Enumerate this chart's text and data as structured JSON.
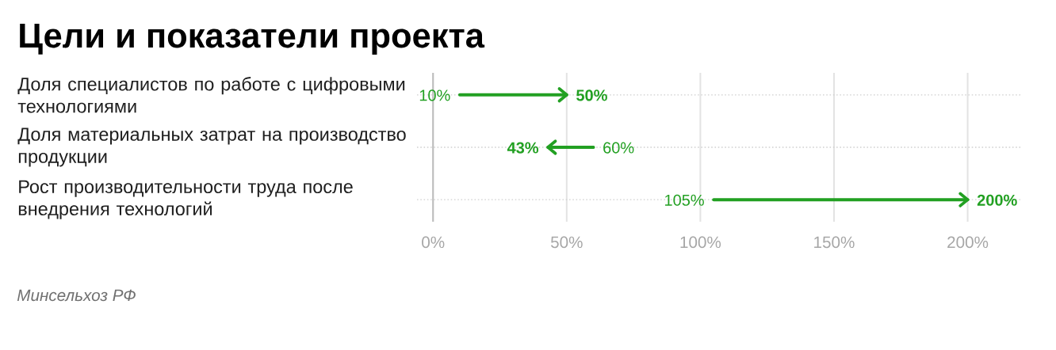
{
  "chart_data": {
    "type": "bar",
    "orientation": "horizontal",
    "title": "Цели и показатели проекта",
    "categories": [
      "Доля специалистов по работе с цифровыми технологиями",
      "Доля материальных затрат на производство продукции",
      "Рост производительности труда после внедрения технологий"
    ],
    "base": [
      10,
      60,
      105
    ],
    "values": [
      40,
      -17,
      95
    ],
    "color": "#22a022",
    "xlim": [
      -6,
      220
    ],
    "xticks": [
      {
        "value": 0,
        "label": "0%"
      },
      {
        "value": 50,
        "label": "50%"
      },
      {
        "value": 100,
        "label": "100%"
      },
      {
        "value": 150,
        "label": "150%"
      },
      {
        "value": 200,
        "label": "200%"
      }
    ],
    "grid": true,
    "annotations": [
      {
        "text": "10%",
        "x": 10,
        "y": "Доля специалистов по работе с цифровыми технологиями"
      },
      {
        "text": "50%",
        "x": 50,
        "y": "Доля специалистов по работе с цифровыми технологиями"
      },
      {
        "text": "60%",
        "x": 60,
        "y": "Доля материальных затрат на производство продукции"
      },
      {
        "text": "43%",
        "x": 43,
        "y": "Доля материальных затрат на производство продукции"
      },
      {
        "text": "105%",
        "x": 105,
        "y": "Рост производительности труда после внедрения технологий"
      },
      {
        "text": "200%",
        "x": 200,
        "y": "Рост производительности труда после внедрения технологий"
      },
      "Минсельхоз РФ"
    ]
  }
}
